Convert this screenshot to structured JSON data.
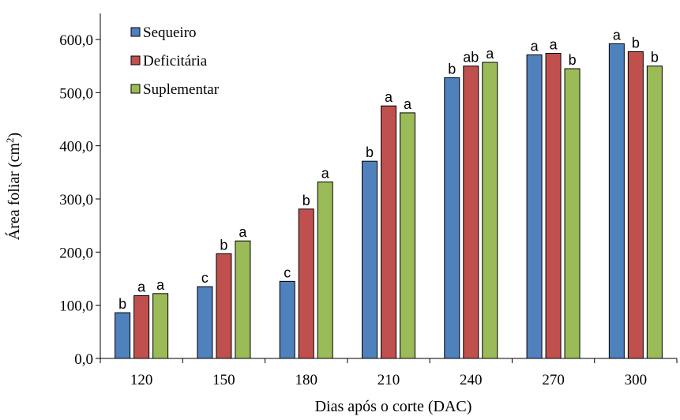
{
  "chart_data": {
    "type": "bar",
    "title": "",
    "xlabel": "Dias após o corte (DAC)",
    "ylabel": "Área foliar (cm²)",
    "ylabel_parts": {
      "main": "Área foliar (cm",
      "sup": "2",
      "end": ")"
    },
    "categories": [
      "120",
      "150",
      "180",
      "210",
      "240",
      "270",
      "300"
    ],
    "ylim": [
      0,
      600
    ],
    "yticks": [
      0,
      100,
      200,
      300,
      400,
      500,
      600
    ],
    "ytick_labels": [
      "0,0",
      "100,0",
      "200,0",
      "300,0",
      "400,0",
      "500,0",
      "600,0"
    ],
    "grid": false,
    "legend_position": "top-left",
    "series": [
      {
        "name": "Sequeiro",
        "color": "#4F81BD",
        "values": [
          86,
          135,
          145,
          371,
          528,
          571,
          592
        ],
        "labels": [
          "b",
          "c",
          "c",
          "b",
          "b",
          "a",
          "a"
        ]
      },
      {
        "name": "Deficitária",
        "color": "#C0504D",
        "values": [
          118,
          197,
          281,
          475,
          550,
          574,
          577
        ],
        "labels": [
          "a",
          "b",
          "b",
          "a",
          "ab",
          "a",
          "b"
        ]
      },
      {
        "name": "Suplementar",
        "color": "#9BBB59",
        "values": [
          122,
          221,
          332,
          462,
          557,
          545,
          550
        ],
        "labels": [
          "a",
          "a",
          "a",
          "a",
          "a",
          "b",
          "b"
        ]
      }
    ]
  }
}
